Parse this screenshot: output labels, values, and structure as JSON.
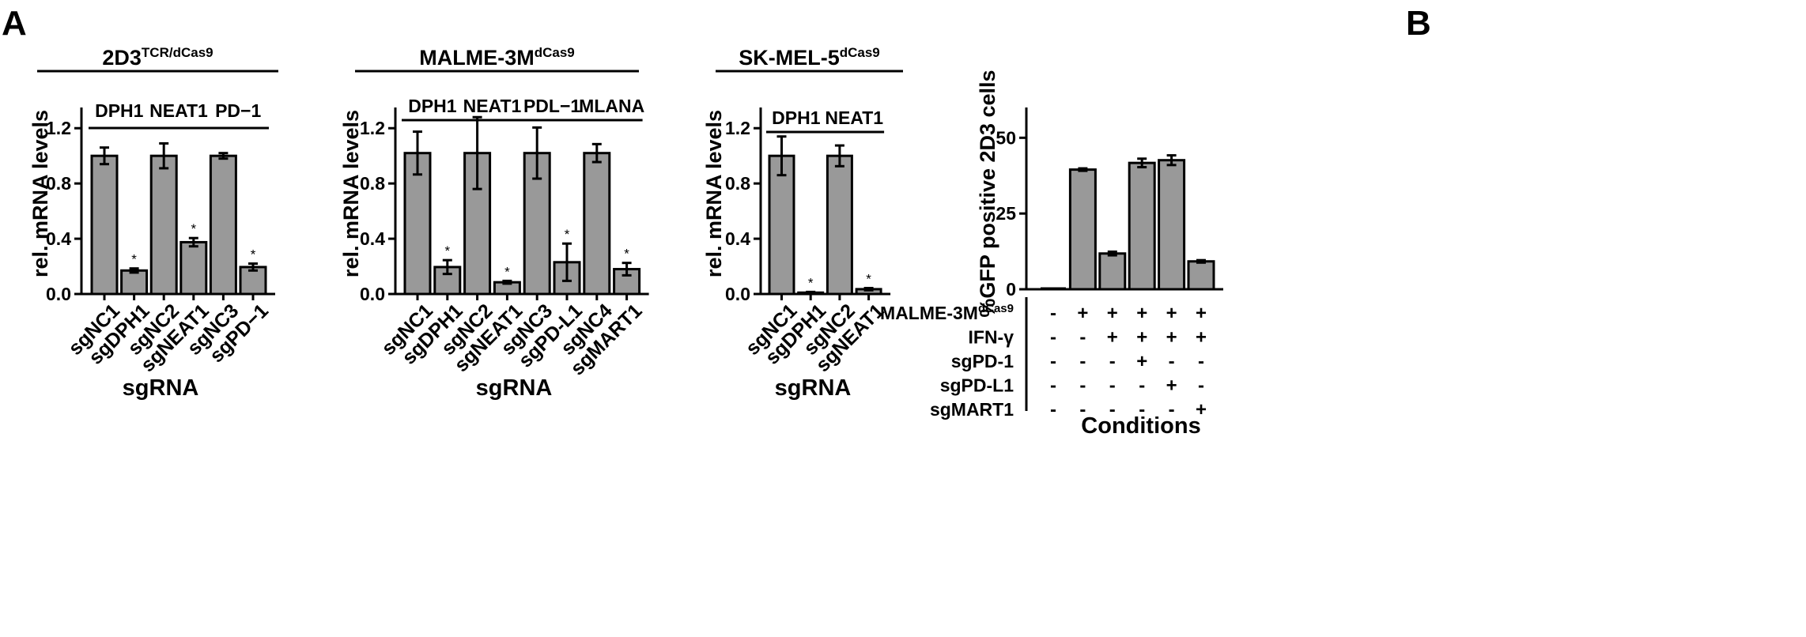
{
  "panel_labels": {
    "a": "A",
    "b": "B"
  },
  "colors": {
    "bar_fill": "#999999",
    "bar_stroke": "#000000",
    "axis": "#000000"
  },
  "chart_data": [
    {
      "type": "bar",
      "panel": "A",
      "title": "2D3",
      "title_sup": "TCR/dCas9",
      "ylabel": "rel. mRNA levels",
      "xlabel": "sgRNA",
      "ylim": [
        0,
        1.35
      ],
      "yticks": [
        0.0,
        0.4,
        0.8,
        1.2
      ],
      "ytick_labels": [
        "0.0",
        "0.4",
        "0.8",
        "1.2"
      ],
      "categories": [
        "sgNC1",
        "sgDPH1",
        "sgNC2",
        "sgNEAT1",
        "sgNC3",
        "sgPD−1"
      ],
      "values": [
        1.0,
        0.17,
        1.0,
        0.375,
        1.0,
        0.195
      ],
      "errors": [
        0.06,
        0.015,
        0.09,
        0.03,
        0.02,
        0.025
      ],
      "significance": [
        "",
        "*",
        "",
        "*",
        "",
        "*"
      ],
      "groups": [
        {
          "label": "DPH1",
          "span": [
            0,
            1
          ]
        },
        {
          "label": "NEAT1",
          "span": [
            2,
            3
          ]
        },
        {
          "label": "PD−1",
          "span": [
            4,
            5
          ]
        }
      ],
      "grid": false
    },
    {
      "type": "bar",
      "panel": "A",
      "title": "MALME-3M",
      "title_sup": "dCas9",
      "ylabel": "rel. mRNA levels",
      "xlabel": "sgRNA",
      "ylim": [
        0,
        1.35
      ],
      "yticks": [
        0.0,
        0.4,
        0.8,
        1.2
      ],
      "ytick_labels": [
        "0.0",
        "0.4",
        "0.8",
        "1.2"
      ],
      "categories": [
        "sgNC1",
        "sgDPH1",
        "sgNC2",
        "sgNEAT1",
        "sgNC3",
        "sgPD-L1",
        "sgNC4",
        "sgMART1"
      ],
      "values": [
        1.02,
        0.195,
        1.02,
        0.085,
        1.02,
        0.23,
        1.02,
        0.18
      ],
      "errors": [
        0.155,
        0.05,
        0.26,
        0.01,
        0.185,
        0.135,
        0.065,
        0.045
      ],
      "significance": [
        "",
        "*",
        "",
        "*",
        "",
        "*",
        "",
        "*"
      ],
      "groups": [
        {
          "label": "DPH1",
          "span": [
            0,
            1
          ]
        },
        {
          "label": "NEAT1",
          "span": [
            2,
            3
          ]
        },
        {
          "label": "PDL−1",
          "span": [
            4,
            5
          ]
        },
        {
          "label": "MLANA",
          "span": [
            6,
            7
          ]
        }
      ],
      "grid": false
    },
    {
      "type": "bar",
      "panel": "A",
      "title": "SK-MEL-5",
      "title_sup": "dCas9",
      "ylabel": "rel. mRNA levels",
      "xlabel": "sgRNA",
      "ylim": [
        0,
        1.35
      ],
      "yticks": [
        0.0,
        0.4,
        0.8,
        1.2
      ],
      "ytick_labels": [
        "0.0",
        "0.4",
        "0.8",
        "1.2"
      ],
      "categories": [
        "sgNC1",
        "sgDPH1",
        "sgNC2",
        "sgNEAT1"
      ],
      "values": [
        1.0,
        0.01,
        1.0,
        0.035
      ],
      "errors": [
        0.14,
        0.005,
        0.075,
        0.008
      ],
      "significance": [
        "",
        "*",
        "",
        "*"
      ],
      "groups": [
        {
          "label": "DPH1",
          "span": [
            0,
            1
          ]
        },
        {
          "label": "NEAT1",
          "span": [
            2,
            3
          ]
        }
      ],
      "grid": false
    },
    {
      "type": "bar",
      "panel": "B",
      "ylabel": "%GFP positive 2D3 cells",
      "xlabel": "Conditions",
      "ylim": [
        0,
        60
      ],
      "yticks": [
        0,
        25,
        50
      ],
      "ytick_labels": [
        "0",
        "25",
        "50"
      ],
      "values": [
        0,
        39.5,
        11.8,
        41.7,
        42.6,
        9.2
      ],
      "errors": [
        0,
        0.4,
        0.6,
        1.4,
        1.6,
        0.4
      ],
      "conditions": [
        {
          "label": "MALME-3M",
          "sup": "dCas9",
          "marks": [
            "-",
            "+",
            "+",
            "+",
            "+",
            "+"
          ]
        },
        {
          "label": "IFN-γ",
          "sup": "",
          "marks": [
            "-",
            "-",
            "+",
            "+",
            "+",
            "+"
          ]
        },
        {
          "label": "sgPD-1",
          "sup": "",
          "marks": [
            "-",
            "-",
            "-",
            "+",
            "-",
            "-"
          ]
        },
        {
          "label": "sgPD-L1",
          "sup": "",
          "marks": [
            "-",
            "-",
            "-",
            "-",
            "+",
            "-"
          ]
        },
        {
          "label": "sgMART1",
          "sup": "",
          "marks": [
            "-",
            "-",
            "-",
            "-",
            "-",
            "+"
          ]
        }
      ],
      "grid": false
    }
  ]
}
